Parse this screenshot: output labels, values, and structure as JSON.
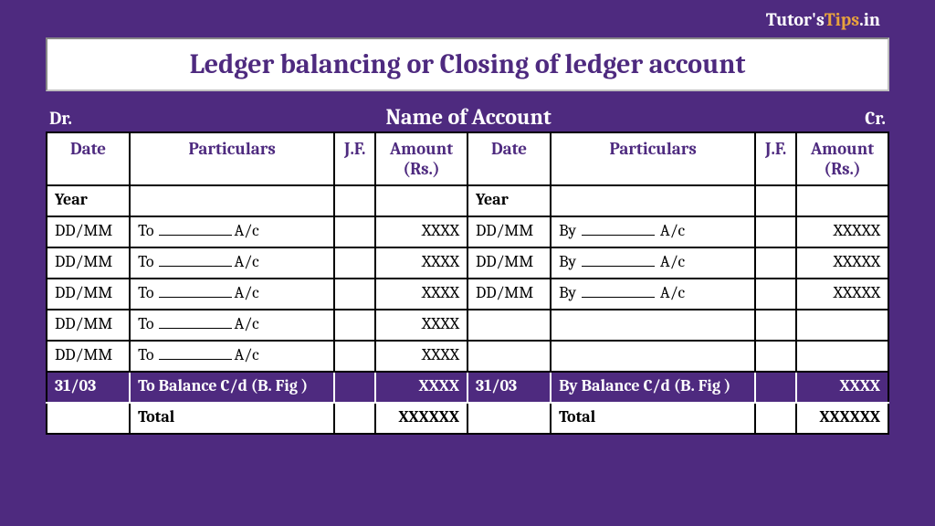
{
  "watermark": {
    "part1": "Tutor's",
    "part2": "Tips",
    "part3": ".in"
  },
  "title": "Ledger balancing or Closing of ledger account",
  "header": {
    "dr": "Dr.",
    "name": "Name of Account",
    "cr": "Cr."
  },
  "columns": {
    "date": "Date",
    "particulars": "Particulars",
    "jf": "J.F.",
    "amount": "Amount (Rs.)"
  },
  "yearLabel": "Year",
  "debit": {
    "rows": [
      {
        "date": "DD/MM",
        "prefix": "To ",
        "suffix": "A/c",
        "amount": "XXXX"
      },
      {
        "date": "DD/MM",
        "prefix": "To ",
        "suffix": "A/c",
        "amount": "XXXX"
      },
      {
        "date": "DD/MM",
        "prefix": "To ",
        "suffix": "A/c",
        "amount": "XXXX"
      },
      {
        "date": "DD/MM",
        "prefix": "To ",
        "suffix": "A/c",
        "amount": "XXXX"
      },
      {
        "date": "DD/MM",
        "prefix": "To ",
        "suffix": "A/c",
        "amount": "XXXX"
      }
    ],
    "balance": {
      "date": "31/03",
      "text": "To Balance C/d (B. Fig )",
      "amount": "XXXX"
    },
    "total": {
      "label": "Total",
      "amount": "XXXXXX"
    }
  },
  "credit": {
    "rows": [
      {
        "date": "DD/MM",
        "prefix": "By ",
        "suffix": " A/c",
        "amount": "XXXXX"
      },
      {
        "date": "DD/MM",
        "prefix": "By ",
        "suffix": " A/c",
        "amount": "XXXXX"
      },
      {
        "date": "DD/MM",
        "prefix": "By ",
        "suffix": " A/c",
        "amount": "XXXXX"
      },
      {
        "date": "",
        "prefix": "",
        "suffix": "",
        "amount": ""
      },
      {
        "date": "",
        "prefix": "",
        "suffix": "",
        "amount": ""
      }
    ],
    "balance": {
      "date": "31/03",
      "text": "By Balance C/d (B. Fig )",
      "amount": "XXXX"
    },
    "total": {
      "label": "Total",
      "amount": "XXXXXX"
    }
  },
  "styling": {
    "background": "#4e2a7f",
    "titleTextColor": "#4e2a7f",
    "tableBg": "#ffffff",
    "borderColor": "#000000",
    "balanceRowBg": "#4e2a7f",
    "balanceRowText": "#ffffff",
    "watermarkOrange": "#e8a33d"
  }
}
